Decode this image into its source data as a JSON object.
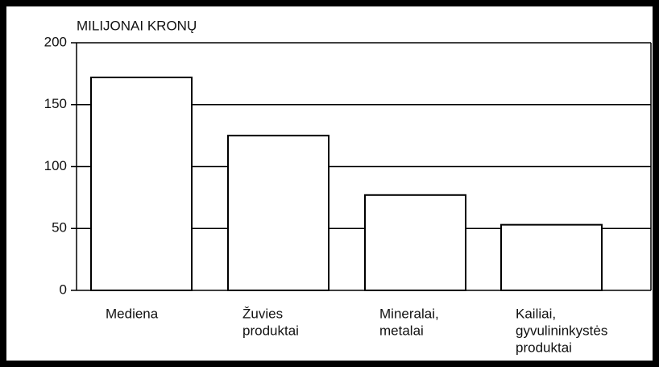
{
  "chart_data": {
    "type": "bar",
    "y_label": "MILIJONAI KRONŲ",
    "categories": [
      [
        "Mediena"
      ],
      [
        "Žuvies",
        "produktai"
      ],
      [
        "Mineralai,",
        "metalai"
      ],
      [
        "Kailiai,",
        "gyvulininkystės",
        "produktai"
      ]
    ],
    "values": [
      172,
      125,
      77,
      53
    ],
    "color": "#ffffff",
    "ylim": [
      0,
      200
    ],
    "yticks": [
      0,
      50,
      100,
      150,
      200
    ],
    "grid": true
  }
}
